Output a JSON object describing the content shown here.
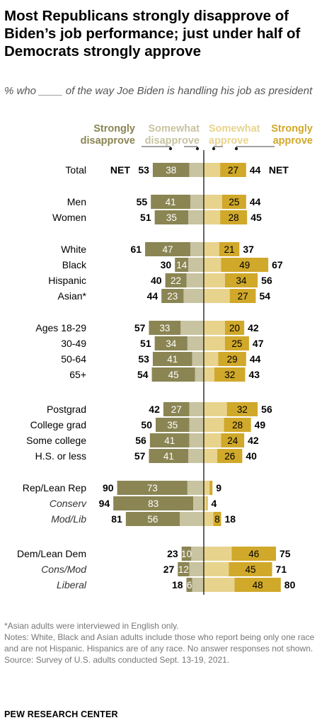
{
  "title": "Most Republicans strongly disapprove of Biden’s job performance; just under half of Democrats strongly approve",
  "subtitle": "% who ____ of the way Joe Biden is handling his job as president",
  "notes": {
    "asian": "*Asian adults were interviewed in English only.",
    "main": "Notes: White, Black and Asian adults include those who report being only one race and are not Hispanic. Hispanics are of any race. No answer responses not shown.",
    "source": "Source: Survey of U.S. adults conducted Sept. 13-19, 2021.",
    "org": "PEW RESEARCH CENTER"
  },
  "colors": {
    "strongly_disapprove": "#8a8553",
    "somewhat_disapprove": "#c8c3a0",
    "somewhat_approve": "#e8d38d",
    "strongly_approve": "#d0a82a"
  },
  "chart_data": {
    "type": "bar",
    "orientation": "horizontal-diverging",
    "legend": [
      "Strongly disapprove",
      "Somewhat disapprove",
      "Somewhat approve",
      "Strongly approve"
    ],
    "net_label": "NET",
    "rows": [
      {
        "label": "Total",
        "sd": 38,
        "swd": 15,
        "sa": 17,
        "sta": 27,
        "net_dis": 53,
        "net_app": 44,
        "shown_sd": "38",
        "shown_sta": "27",
        "italic": false,
        "group": 0
      },
      {
        "label": "Men",
        "sd": 41,
        "swd": 14,
        "sa": 19,
        "sta": 25,
        "net_dis": 55,
        "net_app": 44,
        "shown_sd": "41",
        "shown_sta": "25",
        "italic": false,
        "group": 1
      },
      {
        "label": "Women",
        "sd": 35,
        "swd": 16,
        "sa": 17,
        "sta": 28,
        "net_dis": 51,
        "net_app": 45,
        "shown_sd": "35",
        "shown_sta": "28",
        "italic": false,
        "group": 1
      },
      {
        "label": "White",
        "sd": 47,
        "swd": 14,
        "sa": 16,
        "sta": 21,
        "net_dis": 61,
        "net_app": 37,
        "shown_sd": "47",
        "shown_sta": "21",
        "italic": false,
        "group": 2
      },
      {
        "label": "Black",
        "sd": 14,
        "swd": 16,
        "sa": 18,
        "sta": 49,
        "net_dis": 30,
        "net_app": 67,
        "shown_sd": "14",
        "shown_sta": "49",
        "italic": false,
        "group": 2
      },
      {
        "label": "Hispanic",
        "sd": 22,
        "swd": 18,
        "sa": 22,
        "sta": 34,
        "net_dis": 40,
        "net_app": 56,
        "shown_sd": "22",
        "shown_sta": "34",
        "italic": false,
        "group": 2
      },
      {
        "label": "Asian*",
        "sd": 23,
        "swd": 21,
        "sa": 27,
        "sta": 27,
        "net_dis": 44,
        "net_app": 54,
        "shown_sd": "23",
        "shown_sta": "27",
        "italic": false,
        "group": 2
      },
      {
        "label": "Ages 18-29",
        "sd": 33,
        "swd": 24,
        "sa": 22,
        "sta": 20,
        "net_dis": 57,
        "net_app": 42,
        "shown_sd": "33",
        "shown_sta": "20",
        "italic": false,
        "group": 3
      },
      {
        "label": "30-49",
        "sd": 34,
        "swd": 17,
        "sa": 22,
        "sta": 25,
        "net_dis": 51,
        "net_app": 47,
        "shown_sd": "34",
        "shown_sta": "25",
        "italic": false,
        "group": 3
      },
      {
        "label": "50-64",
        "sd": 41,
        "swd": 12,
        "sa": 15,
        "sta": 29,
        "net_dis": 53,
        "net_app": 44,
        "shown_sd": "41",
        "shown_sta": "29",
        "italic": false,
        "group": 3
      },
      {
        "label": "65+",
        "sd": 45,
        "swd": 9,
        "sa": 11,
        "sta": 32,
        "net_dis": 54,
        "net_app": 43,
        "shown_sd": "45",
        "shown_sta": "32",
        "italic": false,
        "group": 3
      },
      {
        "label": "Postgrad",
        "sd": 27,
        "swd": 15,
        "sa": 24,
        "sta": 32,
        "net_dis": 42,
        "net_app": 56,
        "shown_sd": "27",
        "shown_sta": "32",
        "italic": false,
        "group": 4
      },
      {
        "label": "College grad",
        "sd": 35,
        "swd": 15,
        "sa": 21,
        "sta": 28,
        "net_dis": 50,
        "net_app": 49,
        "shown_sd": "35",
        "shown_sta": "28",
        "italic": false,
        "group": 4
      },
      {
        "label": "Some college",
        "sd": 41,
        "swd": 15,
        "sa": 18,
        "sta": 24,
        "net_dis": 56,
        "net_app": 42,
        "shown_sd": "41",
        "shown_sta": "24",
        "italic": false,
        "group": 4
      },
      {
        "label": "H.S. or less",
        "sd": 41,
        "swd": 16,
        "sa": 14,
        "sta": 26,
        "net_dis": 57,
        "net_app": 40,
        "shown_sd": "41",
        "shown_sta": "26",
        "italic": false,
        "group": 4
      },
      {
        "label": "Rep/Lean Rep",
        "sd": 73,
        "swd": 17,
        "sa": 6,
        "sta": 3,
        "net_dis": 90,
        "net_app": 9,
        "shown_sd": "73",
        "shown_sta": "",
        "italic": false,
        "group": 5
      },
      {
        "label": "Conserv",
        "sd": 83,
        "swd": 11,
        "sa": 3,
        "sta": 1,
        "net_dis": 94,
        "net_app": 4,
        "shown_sd": "83",
        "shown_sta": "",
        "italic": true,
        "group": 5
      },
      {
        "label": "Mod/Lib",
        "sd": 56,
        "swd": 25,
        "sa": 10,
        "sta": 8,
        "net_dis": 81,
        "net_app": 18,
        "shown_sd": "56",
        "shown_sta": "8",
        "italic": true,
        "group": 5
      },
      {
        "label": "Dem/Lean Dem",
        "sd": 10,
        "swd": 13,
        "sa": 29,
        "sta": 46,
        "net_dis": 23,
        "net_app": 75,
        "shown_sd": "10",
        "shown_sta": "46",
        "italic": false,
        "group": 6
      },
      {
        "label": "Cons/Mod",
        "sd": 12,
        "swd": 15,
        "sa": 26,
        "sta": 45,
        "net_dis": 27,
        "net_app": 71,
        "shown_sd": "12",
        "shown_sta": "45",
        "italic": true,
        "group": 6
      },
      {
        "label": "Liberal",
        "sd": 6,
        "swd": 12,
        "sa": 32,
        "sta": 48,
        "net_dis": 18,
        "net_app": 80,
        "shown_sd": "6",
        "shown_sta": "48",
        "italic": true,
        "group": 6
      }
    ]
  }
}
